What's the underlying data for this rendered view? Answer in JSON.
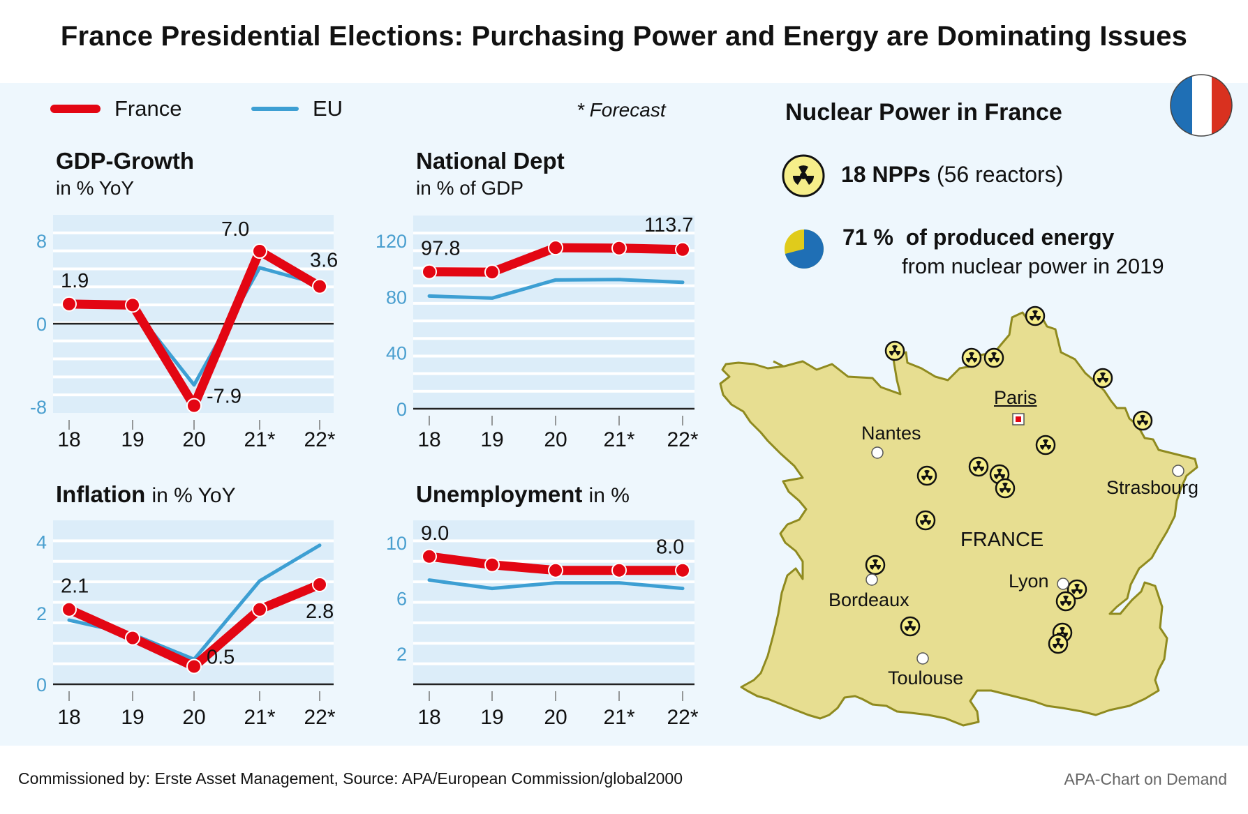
{
  "title": "France Presidential Elections: Purchasing Power and Energy are Dominating Issues",
  "legend": [
    {
      "label": "France",
      "color": "#e30613"
    },
    {
      "label": "EU",
      "color": "#3d9fd3"
    }
  ],
  "forecast_note": "* Forecast",
  "colors": {
    "france": "#e30613",
    "eu": "#3d9fd3",
    "panel_bg": "#eef7fd",
    "plot_bg": "#dcedf9",
    "axis_tick": "#4a9fcf",
    "map_fill": "#e7de91",
    "map_stroke": "#8f8a1f"
  },
  "chart_data": [
    {
      "id": "gdp",
      "type": "line",
      "title": "GDP-Growth",
      "subtitle": "in % YoY",
      "categories": [
        "18",
        "19",
        "20",
        "21*",
        "22*"
      ],
      "yticks": [
        "8",
        "0",
        "-8"
      ],
      "ylim": [
        -8.6,
        10.5
      ],
      "series": [
        {
          "name": "France",
          "values": [
            1.9,
            1.8,
            -7.9,
            7.0,
            3.6
          ]
        },
        {
          "name": "EU",
          "values": [
            1.9,
            1.6,
            -5.9,
            5.4,
            3.8
          ]
        }
      ],
      "data_labels": [
        {
          "index": 0,
          "text": "1.9",
          "pos": "above"
        },
        {
          "index": 2,
          "text": "-7.9",
          "pos": "right"
        },
        {
          "index": 3,
          "text": "7.0",
          "pos": "above-left"
        },
        {
          "index": 4,
          "text": "3.6",
          "pos": "above"
        }
      ],
      "zero_line": true,
      "grid": true
    },
    {
      "id": "debt",
      "type": "line",
      "title": "National Dept",
      "subtitle": "in % of GDP",
      "categories": [
        "18",
        "19",
        "20",
        "21*",
        "22*"
      ],
      "yticks": [
        "120",
        "80",
        "40",
        "0"
      ],
      "ylim": [
        0,
        138
      ],
      "series": [
        {
          "name": "France",
          "values": [
            97.8,
            97.6,
            115.0,
            114.7,
            113.7
          ]
        },
        {
          "name": "EU",
          "values": [
            80.5,
            79.0,
            92.0,
            92.3,
            90.3
          ]
        }
      ],
      "data_labels": [
        {
          "index": 0,
          "text": "97.8",
          "pos": "above"
        },
        {
          "index": 4,
          "text": "113.7",
          "pos": "above"
        }
      ],
      "zero_line": true,
      "grid": true
    },
    {
      "id": "inflation",
      "type": "line",
      "title": "Inflation",
      "subtitle": "in % YoY",
      "categories": [
        "18",
        "19",
        "20",
        "21*",
        "22*"
      ],
      "yticks": [
        "4",
        "2",
        "0"
      ],
      "ylim": [
        0,
        4.6
      ],
      "series": [
        {
          "name": "France",
          "values": [
            2.1,
            1.3,
            0.5,
            2.1,
            2.8
          ]
        },
        {
          "name": "EU",
          "values": [
            1.8,
            1.4,
            0.7,
            2.9,
            3.9
          ]
        }
      ],
      "data_labels": [
        {
          "index": 0,
          "text": "2.1",
          "pos": "above"
        },
        {
          "index": 2,
          "text": "0.5",
          "pos": "right"
        },
        {
          "index": 4,
          "text": "2.8",
          "pos": "below"
        }
      ],
      "zero_line": true,
      "grid": true
    },
    {
      "id": "unemployment",
      "type": "line",
      "title": "Unemployment",
      "subtitle": "in %",
      "categories": [
        "18",
        "19",
        "20",
        "21*",
        "22*"
      ],
      "yticks": [
        "10",
        "6",
        "2"
      ],
      "ylim": [
        -0.2,
        11.6
      ],
      "series": [
        {
          "name": "France",
          "values": [
            9.0,
            8.4,
            8.0,
            8.0,
            8.0
          ]
        },
        {
          "name": "EU",
          "values": [
            7.3,
            6.7,
            7.1,
            7.1,
            6.7
          ]
        }
      ],
      "data_labels": [
        {
          "index": 0,
          "text": "9.0",
          "pos": "above"
        },
        {
          "index": 4,
          "text": "8.0",
          "pos": "above"
        }
      ],
      "zero_line": false,
      "grid": true
    }
  ],
  "nuclear": {
    "title": "Nuclear Power in France",
    "npp_count": "18 NPPs",
    "reactors": "(56 reactors)",
    "share_pct": "71 %",
    "share_value": 0.71,
    "share_text": "of produced energy",
    "share_sub": "from nuclear power in 2019",
    "country_label": "FRANCE",
    "capital": "Paris",
    "cities": [
      "Nantes",
      "Strasbourg",
      "Lyon",
      "Bordeaux",
      "Toulouse"
    ],
    "plant_count_on_map": 18
  },
  "footer": {
    "source": "Commissioned by: Erste Asset Management, Source: APA/European Commission/global2000",
    "credit": "APA-Chart on Demand"
  }
}
